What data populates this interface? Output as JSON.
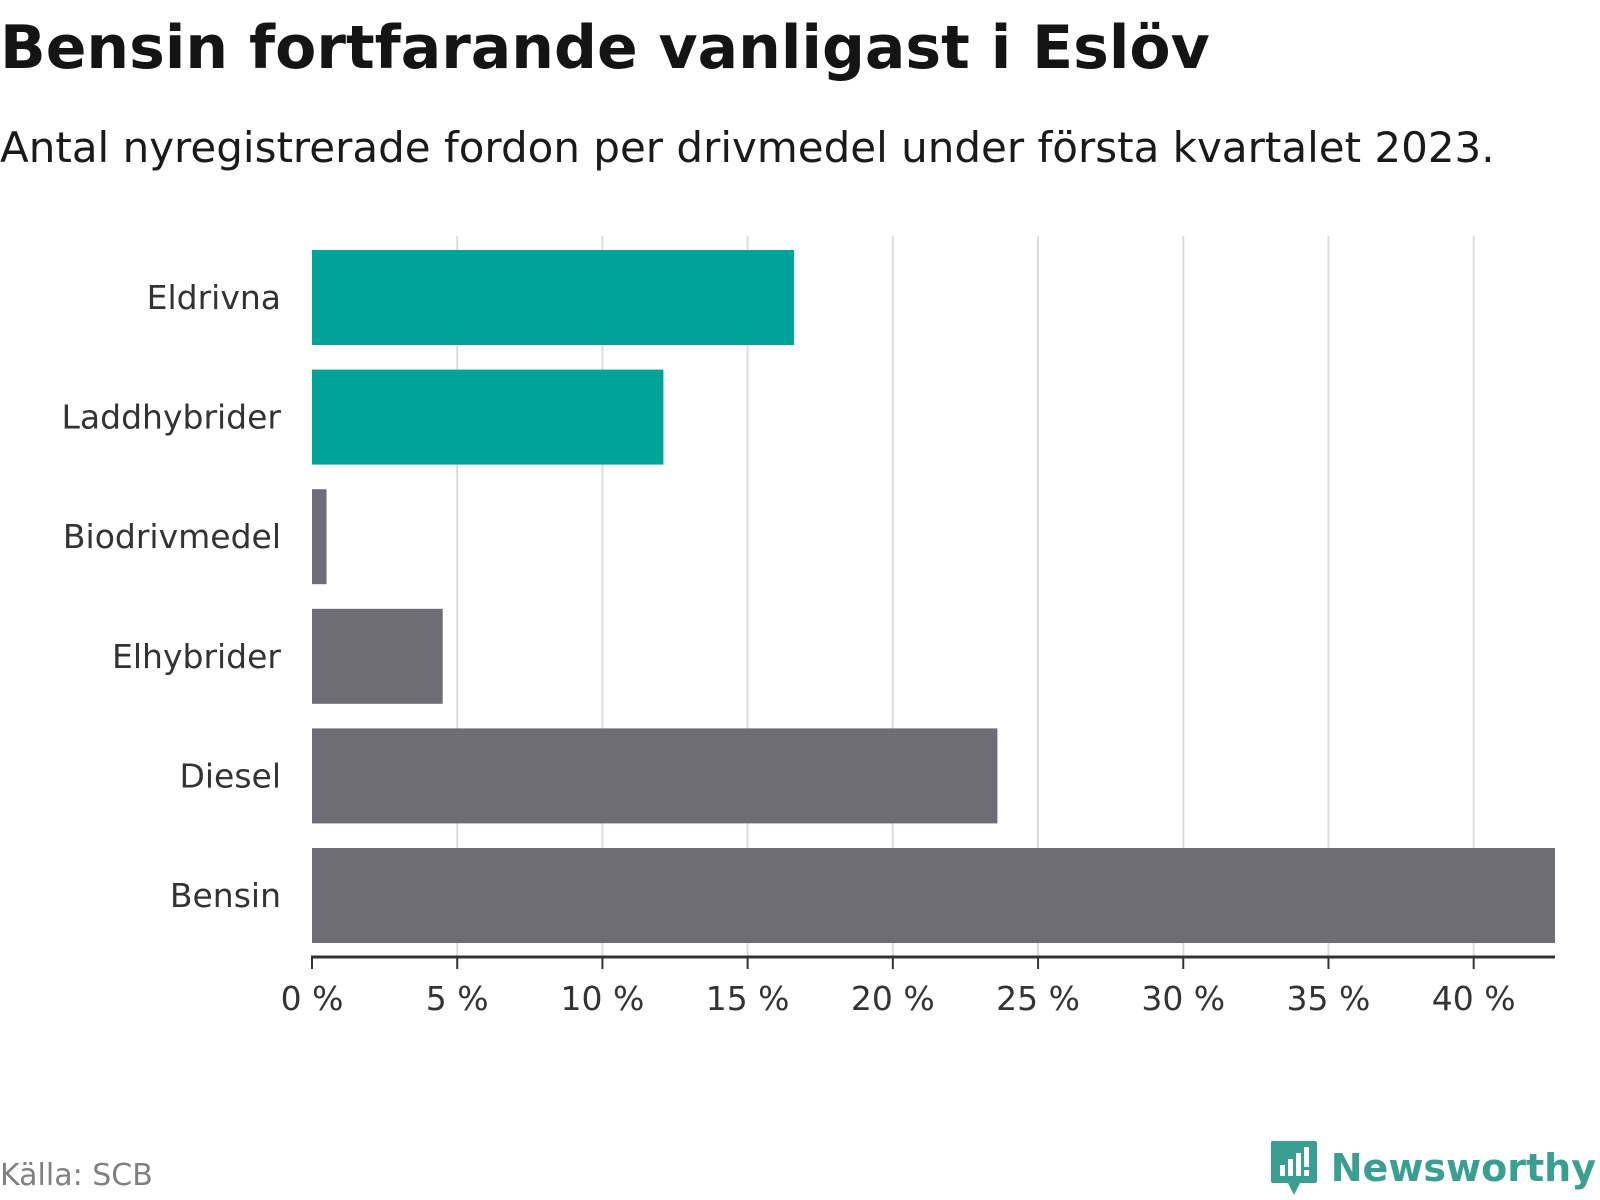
{
  "title": "Bensin fortfarande vanligast i Eslöv",
  "subtitle": "Antal nyregistrerade fordon per drivmedel under första kvartalet 2023.",
  "source": "Källa: SCB",
  "brand": {
    "name": "Newsworthy",
    "icon": "newsworthy-logo-icon"
  },
  "colors": {
    "highlight": "#00a398",
    "default": "#6e6d75",
    "grid": "#dcdcdc",
    "axis": "#333333",
    "brand": "#3a9e91"
  },
  "chart_data": {
    "type": "bar",
    "orientation": "horizontal",
    "categories": [
      "Eldrivna",
      "Laddhybrider",
      "Biodrivmedel",
      "Elhybrider",
      "Diesel",
      "Bensin"
    ],
    "values": [
      16.6,
      12.1,
      0.5,
      4.5,
      23.6,
      42.8
    ],
    "highlighted": [
      true,
      true,
      false,
      false,
      false,
      false
    ],
    "xlim": [
      0,
      42.8
    ],
    "xticks": [
      0,
      5,
      10,
      15,
      20,
      25,
      30,
      35,
      40
    ],
    "tick_labels": [
      "0 %",
      "5 %",
      "10 %",
      "15 %",
      "20 %",
      "25 %",
      "30 %",
      "35 %",
      "40 %"
    ],
    "xlabel": "",
    "ylabel": "",
    "grid": true,
    "legend": "none"
  }
}
